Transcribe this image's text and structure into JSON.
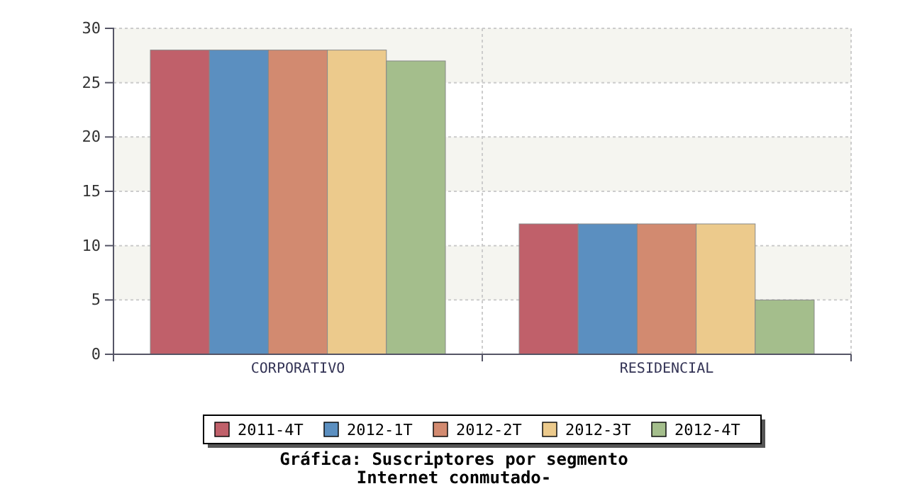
{
  "chart_data": {
    "type": "bar",
    "title": "Gráfica: Suscriptores por segmento",
    "subtitle": "Internet conmutado-",
    "categories": [
      "CORPORATIVO",
      "RESIDENCIAL"
    ],
    "series": [
      {
        "name": "2011-4T",
        "color": "#c0606a",
        "values": [
          28,
          12
        ]
      },
      {
        "name": "2012-1T",
        "color": "#5b8fc0",
        "values": [
          28,
          12
        ]
      },
      {
        "name": "2012-2T",
        "color": "#d28a70",
        "values": [
          28,
          12
        ]
      },
      {
        "name": "2012-3T",
        "color": "#ecca8c",
        "values": [
          28,
          12
        ]
      },
      {
        "name": "2012-4T",
        "color": "#a4be8c",
        "values": [
          27,
          5
        ]
      }
    ],
    "ylim": [
      0,
      30
    ],
    "yticks": [
      0,
      5,
      10,
      15,
      20,
      25,
      30
    ],
    "grid": true,
    "legend": "bottom"
  }
}
